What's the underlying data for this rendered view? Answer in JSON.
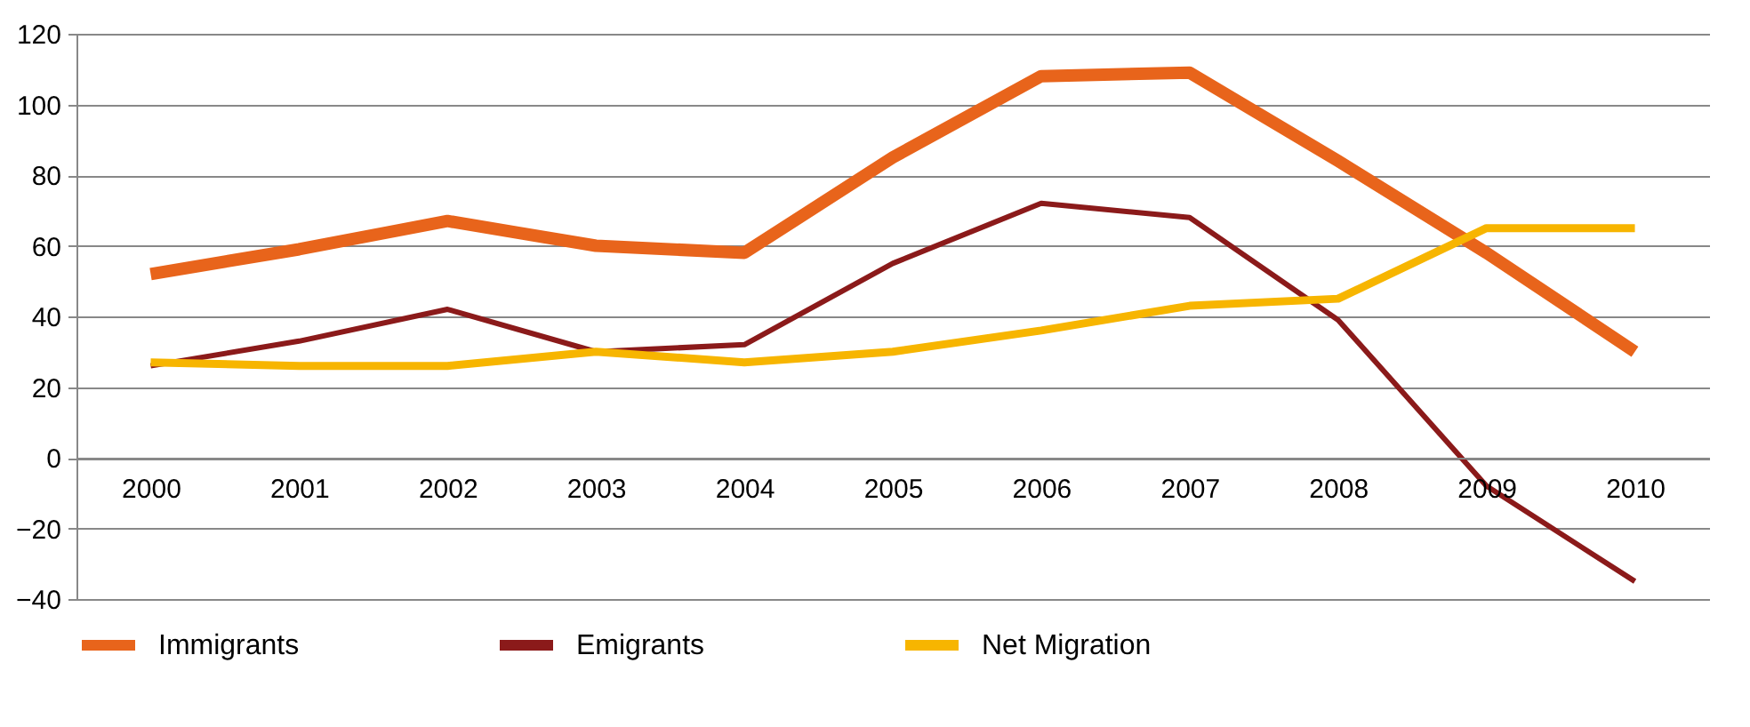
{
  "chart_data": {
    "type": "line",
    "categories": [
      "2000",
      "2001",
      "2002",
      "2003",
      "2004",
      "2005",
      "2006",
      "2007",
      "2008",
      "2009",
      "2010"
    ],
    "series": [
      {
        "name": "Immigrants",
        "color": "#e8641b",
        "values": [
          52,
          59,
          67,
          60,
          58,
          85,
          108,
          109,
          84,
          58,
          30
        ]
      },
      {
        "name": "Emigrants",
        "color": "#8b1a1a",
        "values": [
          26,
          33,
          42,
          30,
          32,
          55,
          72,
          68,
          39,
          -8,
          -35
        ]
      },
      {
        "name": "Net Migration",
        "color": "#f7b500",
        "values": [
          27,
          26,
          26,
          30,
          27,
          30,
          36,
          43,
          45,
          65,
          65
        ]
      }
    ],
    "ylim": [
      -40,
      120
    ],
    "yticks": [
      -40,
      -20,
      0,
      20,
      40,
      60,
      80,
      100,
      120
    ],
    "grid": "y",
    "legend": "bottom",
    "marker": "none",
    "line_style": "solid"
  }
}
